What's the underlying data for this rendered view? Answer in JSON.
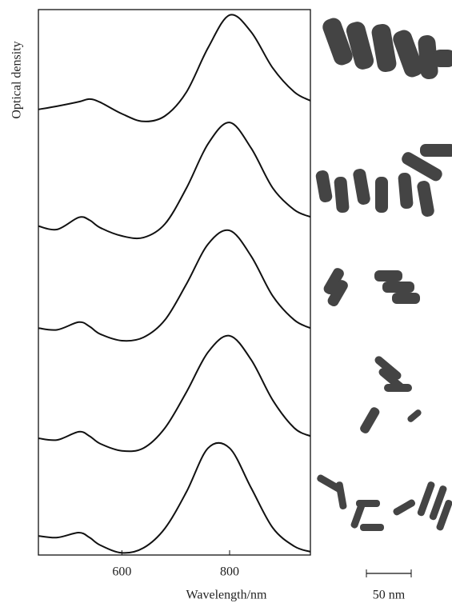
{
  "chart_data": {
    "type": "line",
    "x_label": "Wavelength/nm",
    "y_label": "Optical density",
    "annotations": [
      "50 nm"
    ],
    "x": [
      445,
      480,
      520,
      540,
      560,
      600,
      640,
      680,
      720,
      760,
      800,
      840,
      880,
      920,
      950
    ],
    "xlim": [
      445,
      950
    ],
    "xticks": [
      600,
      800
    ],
    "ylim": [
      0,
      100
    ],
    "series": [
      {
        "color": "#111111",
        "values": [
          81.7,
          82.3,
          83.1,
          83.6,
          83.0,
          80.9,
          79.5,
          80.5,
          84.9,
          93.0,
          99.0,
          95.9,
          89.3,
          84.9,
          83.3
        ]
      },
      {
        "color": "#111111",
        "values": [
          60.3,
          59.7,
          61.9,
          61.4,
          60.0,
          58.5,
          58.2,
          60.7,
          67.3,
          75.4,
          79.3,
          74.6,
          67.3,
          63.3,
          62.0
        ]
      },
      {
        "color": "#111111",
        "values": [
          41.6,
          41.3,
          42.7,
          41.9,
          40.5,
          39.3,
          39.9,
          43.1,
          49.7,
          57.0,
          59.5,
          54.8,
          47.5,
          43.1,
          41.6
        ]
      },
      {
        "color": "#111111",
        "values": [
          21.4,
          21.1,
          22.6,
          21.8,
          20.4,
          19.1,
          19.6,
          23.3,
          29.9,
          37.2,
          40.2,
          35.8,
          28.4,
          23.3,
          21.8
        ]
      },
      {
        "color": "#111111",
        "values": [
          3.5,
          3.2,
          4.1,
          3.2,
          1.8,
          0.4,
          1.3,
          4.9,
          11.6,
          19.6,
          19.6,
          12.3,
          5.0,
          1.6,
          0.6
        ]
      }
    ]
  }
}
